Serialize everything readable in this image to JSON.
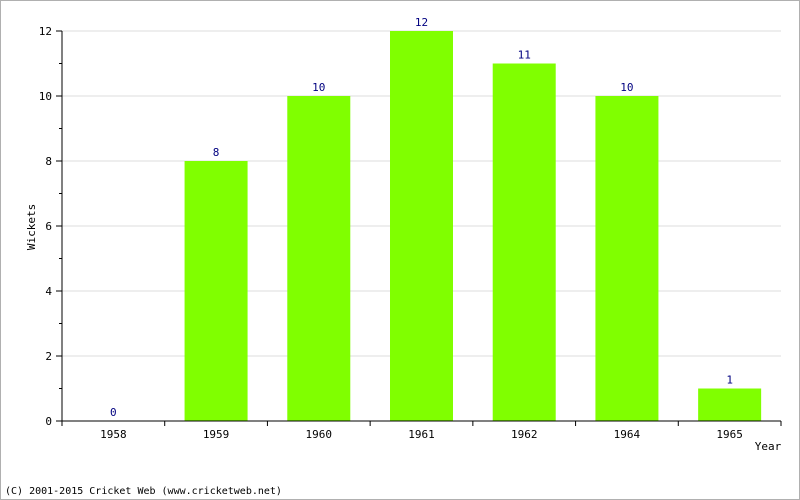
{
  "chart_data": {
    "type": "bar",
    "categories": [
      "1958",
      "1959",
      "1960",
      "1961",
      "1962",
      "1964",
      "1965"
    ],
    "values": [
      0,
      8,
      10,
      12,
      11,
      10,
      1
    ],
    "xlabel": "Year",
    "ylabel": "Wickets",
    "ylim": [
      0,
      12
    ],
    "yticks": [
      0,
      2,
      4,
      6,
      8,
      10,
      12
    ],
    "grid": true,
    "bar_color": "#80ff00",
    "label_color": "#000080"
  },
  "footer": {
    "copyright": "(C) 2001-2015 Cricket Web (www.cricketweb.net)"
  }
}
